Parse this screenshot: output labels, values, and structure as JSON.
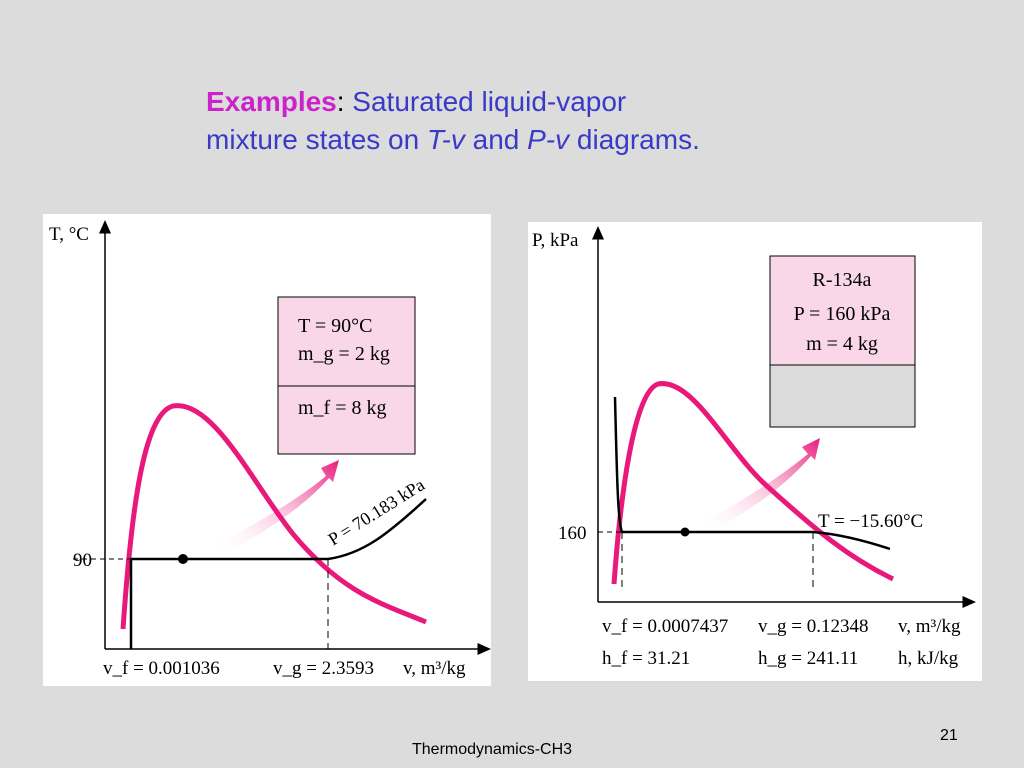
{
  "slide": {
    "title_bold": "Examples",
    "title_colon": ":",
    "title_line1": " Saturated liquid-vapor",
    "title_line2_a": "mixture states on ",
    "title_tv": "T-v",
    "title_and": " and ",
    "title_pv": "P-v",
    "title_end": " diagrams.",
    "footer": "Thermodynamics-CH3",
    "page_number": "21"
  },
  "colors": {
    "background": "#dcdcdc",
    "title_blue": "#3a3ac8",
    "title_highlight": "#cc22cc",
    "dome": "#e8197a",
    "box_fill": "#f9d7e8",
    "vapor_fill": "#dcdcdc"
  },
  "tv_diagram": {
    "y_axis_label": "T, °C",
    "x_axis_label": "v, m³/kg",
    "tick_90": "90",
    "vf_label": "v_f = 0.001036",
    "vg_label": "v_g = 2.3593",
    "isobar_label": "P = 70.183 kPa",
    "box_line1": "T   = 90°C",
    "box_line2": "m_g = 2 kg",
    "box_line3": "m_f = 8 kg"
  },
  "pv_diagram": {
    "y_axis_label": "P, kPa",
    "x_axis_label": "v, m³/kg",
    "h_axis_label": "h, kJ/kg",
    "tick_160": "160",
    "isotherm_label": "T = −15.60°C",
    "vf_label": "v_f = 0.0007437",
    "vg_label": "v_g = 0.12348",
    "hf_label": "h_f = 31.21",
    "hg_label": "h_g = 241.11",
    "box_line1": "R-134a",
    "box_line2": "P = 160 kPa",
    "box_line3": "m = 4 kg"
  }
}
